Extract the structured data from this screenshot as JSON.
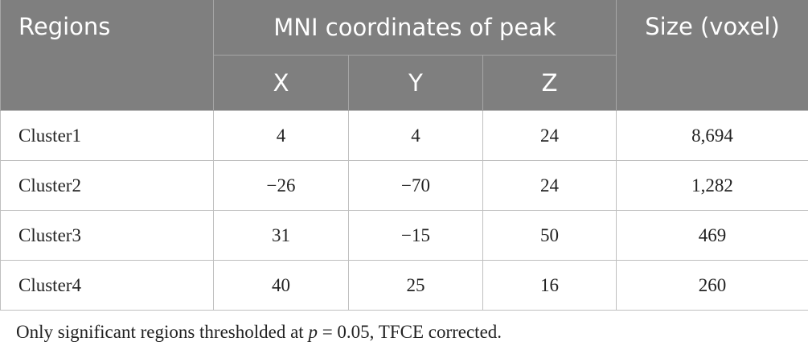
{
  "table": {
    "header": {
      "regions": "Regions",
      "coords": "MNI coordinates of peak",
      "axes": [
        "X",
        "Y",
        "Z"
      ],
      "size": "Size (voxel)"
    },
    "rows": [
      [
        "Cluster1",
        "4",
        "4",
        "24",
        "8,694"
      ],
      [
        "Cluster2",
        "−26",
        "−70",
        "24",
        "1,282"
      ],
      [
        "Cluster3",
        "31",
        "−15",
        "50",
        "469"
      ],
      [
        "Cluster4",
        "40",
        "25",
        "16",
        "260"
      ]
    ]
  },
  "footnote": [
    "Only significant regions thresholded at ",
    "p",
    " = 0.05, TFCE corrected."
  ]
}
